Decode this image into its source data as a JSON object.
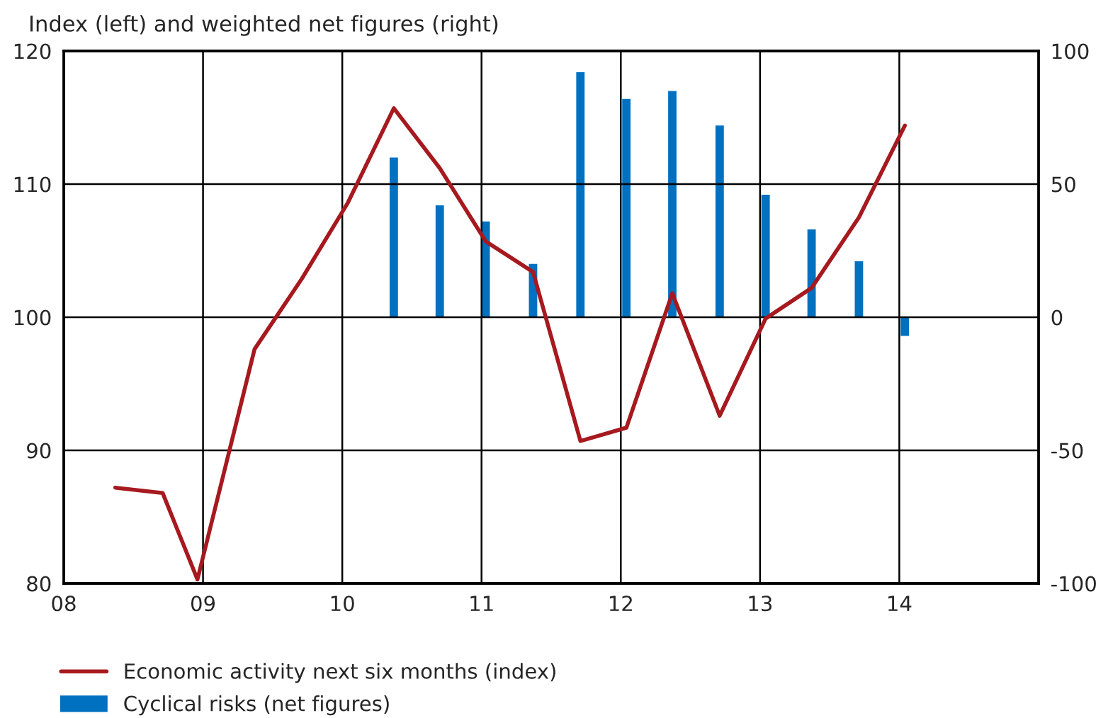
{
  "chart_data": {
    "type": "line",
    "subtitle": "Index (left) and weighted net figures (right)",
    "xlim": [
      2008,
      2015
    ],
    "xticks": [
      {
        "value": 2008,
        "label": "08"
      },
      {
        "value": 2009,
        "label": "09"
      },
      {
        "value": 2010,
        "label": "10"
      },
      {
        "value": 2011,
        "label": "11"
      },
      {
        "value": 2012,
        "label": "12"
      },
      {
        "value": 2013,
        "label": "13"
      },
      {
        "value": 2014,
        "label": "14"
      }
    ],
    "ylim": [
      80,
      120
    ],
    "yticks": [
      80,
      90,
      100,
      110,
      120
    ],
    "y2lim": [
      -100,
      100
    ],
    "y2ticks": [
      -100,
      -50,
      0,
      50,
      100
    ],
    "grid": true,
    "legend": "bottom",
    "series": [
      {
        "name": "Economic activity next six months (index)",
        "color": "#a6191e",
        "x": [
          2008.37,
          2008.71,
          2008.96,
          2009.37,
          2009.71,
          2010.04,
          2010.37,
          2010.7,
          2011.03,
          2011.37,
          2011.71,
          2012.04,
          2012.37,
          2012.71,
          2013.04,
          2013.37,
          2013.71,
          2014.04
        ],
        "values": [
          87.2,
          86.8,
          80.3,
          97.6,
          102.9,
          108.6,
          115.7,
          111.2,
          105.7,
          103.4,
          90.7,
          91.7,
          101.8,
          92.6,
          99.9,
          102.2,
          107.5,
          114.4
        ]
      },
      {
        "name": "Cyclical risks (net figures)",
        "type": "bar",
        "axis": "y2",
        "color": "#0070c0",
        "x": [
          2010.37,
          2010.7,
          2011.03,
          2011.37,
          2011.71,
          2012.04,
          2012.37,
          2012.71,
          2013.04,
          2013.37,
          2013.71,
          2014.04
        ],
        "values": [
          60,
          42,
          36,
          20,
          92,
          82,
          85,
          72,
          46,
          33,
          21,
          -7
        ]
      }
    ]
  }
}
